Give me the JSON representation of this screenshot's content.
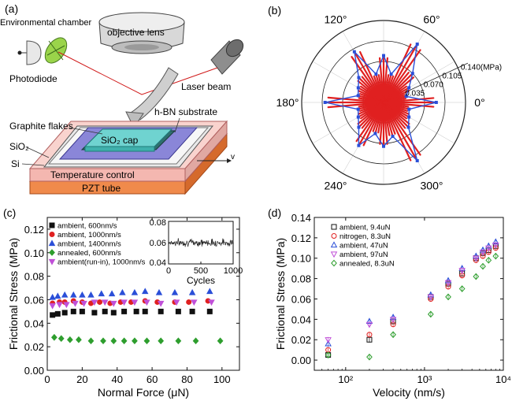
{
  "panels": {
    "a": {
      "tag": "(a)",
      "labels": {
        "env_chamber": "Environmental chamber",
        "objective_lens": "objective lens",
        "photodiode": "Photodiode",
        "laser_beam": "Laser beam",
        "hbn_substrate": "h-BN substrate",
        "graphite_flakes": "Graphite flakes",
        "sio2": "SiO₂",
        "sio2_cap": "SiO₂ cap",
        "si": "Si",
        "temperature_control": "Temperature control",
        "pzt_tube": "PZT tube",
        "velocity": "v"
      }
    },
    "b": {
      "tag": "(b)",
      "angle_labels": [
        "0°",
        "60°",
        "120°",
        "180°",
        "240°",
        "300°"
      ],
      "radial_labels": [
        "0.035",
        "0.070",
        "0.105",
        "0.140(MPa)"
      ]
    },
    "c": {
      "tag": "(c)",
      "inset": {
        "xlabel": "Cycles",
        "x_ticks": [
          "0",
          "500",
          "1000"
        ],
        "y_ticks": [
          "0.08",
          "0.06",
          "0.04"
        ]
      }
    },
    "d": {
      "tag": "(d)"
    }
  },
  "colors": {
    "black": "#111111",
    "red": "#e02020",
    "blue": "#2b4fd8",
    "magenta": "#c050d8",
    "green": "#2e9e2e",
    "substrate_orange": "#f08a4b",
    "plate_pink": "#f4b7b0",
    "hbn_purple": "#8a86d8",
    "cap_cyan": "#6fd3d0"
  },
  "chart_data": [
    {
      "panel": "b",
      "type": "polar",
      "rmax": 0.14,
      "radial_ticks": [
        0.035,
        0.07,
        0.105,
        0.14
      ],
      "angle_ticks_deg": [
        0,
        60,
        120,
        180,
        240,
        300
      ],
      "series": [
        {
          "color": "blue",
          "points": [
            [
              0,
              0.09
            ],
            [
              15,
              0.04
            ],
            [
              30,
              0.05
            ],
            [
              45,
              0.07
            ],
            [
              60,
              0.115
            ],
            [
              75,
              0.05
            ],
            [
              90,
              0.08
            ],
            [
              105,
              0.05
            ],
            [
              120,
              0.1
            ],
            [
              135,
              0.06
            ],
            [
              150,
              0.05
            ],
            [
              165,
              0.045
            ],
            [
              180,
              0.1
            ],
            [
              195,
              0.045
            ],
            [
              210,
              0.05
            ],
            [
              225,
              0.06
            ],
            [
              240,
              0.085
            ],
            [
              255,
              0.055
            ],
            [
              270,
              0.075
            ],
            [
              285,
              0.06
            ],
            [
              300,
              0.115
            ],
            [
              315,
              0.06
            ],
            [
              330,
              0.05
            ],
            [
              345,
              0.045
            ]
          ]
        }
      ]
    },
    {
      "panel": "c",
      "type": "scatter",
      "xlabel": "Normal Force (μN)",
      "ylabel": "Frictional Stress (MPa)",
      "xlim": [
        0,
        110
      ],
      "ylim": [
        0,
        0.13
      ],
      "x_ticks": [
        0,
        20,
        40,
        60,
        80,
        100
      ],
      "y_ticks": [
        0.0,
        0.02,
        0.04,
        0.06,
        0.08,
        0.1,
        0.12
      ],
      "y_tick_labels": [
        "0.00",
        "0.02",
        "0.04",
        "0.06",
        "0.08",
        "0.10",
        "0.12"
      ],
      "legend_position": "top-left",
      "series": [
        {
          "name": "ambient, 600nm/s",
          "marker": "square",
          "color": "black",
          "filled": true,
          "x": [
            3,
            6,
            10,
            15,
            20,
            27,
            33,
            38,
            44,
            51,
            56,
            65,
            75,
            83,
            93
          ],
          "y": [
            0.047,
            0.048,
            0.049,
            0.05,
            0.05,
            0.049,
            0.05,
            0.049,
            0.05,
            0.05,
            0.05,
            0.05,
            0.05,
            0.05,
            0.05
          ]
        },
        {
          "name": "ambient, 1000nm/s",
          "marker": "circle",
          "color": "red",
          "filled": true,
          "x": [
            3,
            7,
            10,
            15,
            20,
            25,
            30,
            36,
            42,
            48,
            56,
            63,
            73,
            81,
            92
          ],
          "y": [
            0.057,
            0.058,
            0.058,
            0.059,
            0.058,
            0.057,
            0.058,
            0.057,
            0.058,
            0.058,
            0.059,
            0.058,
            0.058,
            0.058,
            0.059
          ]
        },
        {
          "name": "ambient, 1400nm/s",
          "marker": "triangle-up",
          "color": "blue",
          "filled": true,
          "x": [
            3,
            6,
            10,
            15,
            20,
            25,
            31,
            37,
            43,
            50,
            56,
            64,
            73,
            83,
            93
          ],
          "y": [
            0.062,
            0.063,
            0.064,
            0.064,
            0.064,
            0.064,
            0.065,
            0.065,
            0.066,
            0.066,
            0.067,
            0.066,
            0.066,
            0.066,
            0.067
          ]
        },
        {
          "name": "annealed, 600nm/s",
          "marker": "diamond",
          "color": "green",
          "filled": true,
          "x": [
            4,
            8,
            13,
            18,
            25,
            32,
            38,
            44,
            50,
            57,
            65,
            75,
            85,
            99
          ],
          "y": [
            0.028,
            0.027,
            0.026,
            0.026,
            0.025,
            0.025,
            0.025,
            0.025,
            0.025,
            0.025,
            0.025,
            0.025,
            0.025,
            0.025
          ]
        },
        {
          "name": "ambient(run-in), 1000nm/s",
          "marker": "triangle-down",
          "color": "magenta",
          "filled": true,
          "x": [
            3,
            7,
            11,
            16,
            21,
            27,
            33,
            38,
            44,
            50,
            57,
            65,
            74,
            84,
            94
          ],
          "y": [
            0.055,
            0.056,
            0.056,
            0.057,
            0.057,
            0.058,
            0.058,
            0.057,
            0.058,
            0.058,
            0.058,
            0.057,
            0.058,
            0.058,
            0.058
          ]
        }
      ],
      "inset": {
        "type": "line",
        "xlim": [
          0,
          1000
        ],
        "ylim": [
          0.04,
          0.08
        ],
        "x_ticks": [
          0,
          500,
          1000
        ],
        "y_ticks": [
          0.04,
          0.06,
          0.08
        ],
        "mean": 0.06,
        "amplitude": 0.005
      }
    },
    {
      "panel": "d",
      "type": "scatter",
      "xscale": "log",
      "xlabel": "Velocity (nm/s)",
      "ylabel": "Frictional Stress (MPa)",
      "xlim": [
        40,
        10000
      ],
      "ylim": [
        -0.01,
        0.14
      ],
      "y_ticks": [
        0.0,
        0.02,
        0.04,
        0.06,
        0.08,
        0.1,
        0.12,
        0.14
      ],
      "y_tick_labels": [
        "0.00",
        "0.02",
        "0.04",
        "0.06",
        "0.08",
        "0.10",
        "0.12",
        "0.14"
      ],
      "x_tick_labels": [
        "10²",
        "10³",
        "10⁴"
      ],
      "x_ticks": [
        100,
        1000,
        10000
      ],
      "legend_position": "top-left",
      "series": [
        {
          "name": "ambient, 9.4uN",
          "marker": "square",
          "color": "black",
          "filled": false,
          "x": [
            60,
            200,
            400,
            1200,
            2000,
            3000,
            4500,
            5500,
            6500,
            8000
          ],
          "y": [
            0.005,
            0.02,
            0.038,
            0.062,
            0.075,
            0.085,
            0.1,
            0.105,
            0.108,
            0.112
          ]
        },
        {
          "name": "nitrogen, 8.3uN",
          "marker": "circle",
          "color": "red",
          "filled": false,
          "x": [
            60,
            200,
            400,
            1200,
            2000,
            3000,
            4500,
            5500,
            6500,
            8000
          ],
          "y": [
            0.01,
            0.025,
            0.035,
            0.06,
            0.072,
            0.083,
            0.098,
            0.102,
            0.106,
            0.11
          ]
        },
        {
          "name": "ambient, 47uN",
          "marker": "triangle-up",
          "color": "blue",
          "filled": false,
          "x": [
            60,
            200,
            400,
            1200,
            2000,
            3000,
            4500,
            5500,
            6500,
            8000
          ],
          "y": [
            0.016,
            0.038,
            0.042,
            0.064,
            0.078,
            0.09,
            0.102,
            0.108,
            0.112,
            0.116
          ]
        },
        {
          "name": "ambient, 97uN",
          "marker": "triangle-down",
          "color": "magenta",
          "filled": false,
          "x": [
            60,
            200,
            400,
            1200,
            2000,
            3000,
            4500,
            5500,
            6500,
            8000
          ],
          "y": [
            0.02,
            0.035,
            0.04,
            0.062,
            0.076,
            0.088,
            0.1,
            0.106,
            0.11,
            0.113
          ]
        },
        {
          "name": "annealed, 8.3uN",
          "marker": "diamond",
          "color": "green",
          "filled": false,
          "x": [
            60,
            200,
            400,
            1200,
            2000,
            3000,
            4500,
            5500,
            6500,
            8000
          ],
          "y": [
            0.005,
            0.003,
            0.025,
            0.045,
            0.062,
            0.07,
            0.082,
            0.092,
            0.098,
            0.102
          ]
        }
      ]
    }
  ]
}
